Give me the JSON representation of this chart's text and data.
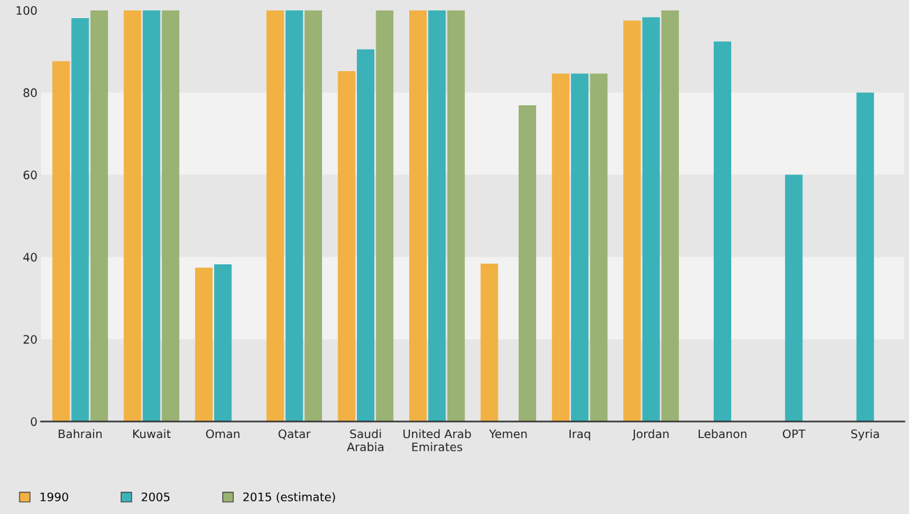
{
  "chart_data": {
    "type": "bar",
    "categories": [
      "Bahrain",
      "Kuwait",
      "Oman",
      "Qatar",
      "Saudi\nArabia",
      "United Arab\nEmirates",
      "Yemen",
      "Iraq",
      "Jordan",
      "Lebanon",
      "OPT",
      "Syria"
    ],
    "series": [
      {
        "name": "1990",
        "color": "#f2b143",
        "values": [
          87.6,
          100,
          37.4,
          100,
          85.2,
          100,
          38.4,
          84.6,
          97.5,
          null,
          null,
          null
        ]
      },
      {
        "name": "2005",
        "color": "#3ab2b8",
        "values": [
          98.1,
          100,
          38.2,
          100,
          90.5,
          100,
          null,
          84.6,
          98.3,
          92.4,
          60,
          80
        ]
      },
      {
        "name": "2015 (estimate)",
        "color": "#9ab273",
        "values": [
          100,
          100,
          null,
          100,
          100,
          100,
          76.9,
          84.6,
          100,
          null,
          null,
          null
        ]
      }
    ],
    "ylim": [
      0,
      100
    ],
    "yticks": [
      0,
      20,
      40,
      60,
      80,
      100
    ],
    "bands": [
      {
        "axis": "y",
        "from": 20,
        "to": 40,
        "color": "#f2f2f2"
      },
      {
        "axis": "y",
        "from": 60,
        "to": 80,
        "color": "#f2f2f2"
      }
    ],
    "grid": false,
    "legend": "bottom"
  }
}
